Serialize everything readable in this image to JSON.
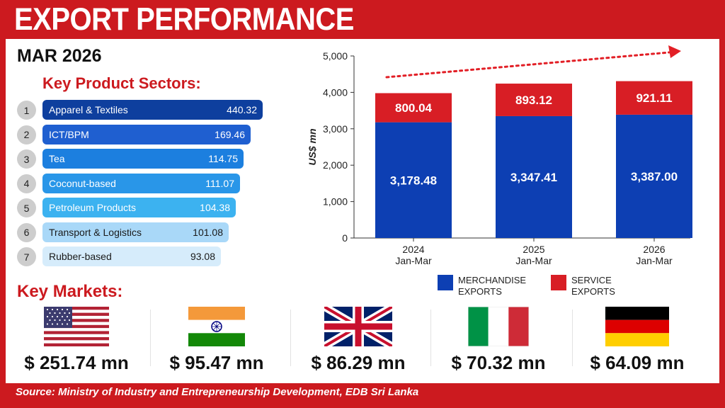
{
  "header": {
    "title": "EXPORT PERFORMANCE",
    "period": "MAR 2026"
  },
  "sectors": {
    "title": "Key Product Sectors:",
    "items": [
      {
        "rank": "1",
        "name": "Apparel & Textiles",
        "value": "440.32",
        "color": "#0e3f9e",
        "text_color": "#ffffff"
      },
      {
        "rank": "2",
        "name": "ICT/BPM",
        "value": "169.46",
        "color": "#1f5fd0",
        "text_color": "#ffffff"
      },
      {
        "rank": "3",
        "name": "Tea",
        "value": "114.75",
        "color": "#1c7fdf",
        "text_color": "#ffffff"
      },
      {
        "rank": "4",
        "name": "Coconut-based",
        "value": "111.07",
        "color": "#2996e8",
        "text_color": "#ffffff"
      },
      {
        "rank": "5",
        "name": "Petroleum Products",
        "value": "104.38",
        "color": "#3cb2f0",
        "text_color": "#ffffff"
      },
      {
        "rank": "6",
        "name": "Transport & Logistics",
        "value": "101.08",
        "color": "#a9d8f8",
        "text_color": "#1a1a1a"
      },
      {
        "rank": "7",
        "name": "Rubber-based",
        "value": "93.08",
        "color": "#d6ecfb",
        "text_color": "#1a1a1a"
      }
    ]
  },
  "markets": {
    "title": "Key Markets:",
    "items": [
      {
        "country": "usa",
        "amount": "$ 251.74 mn"
      },
      {
        "country": "india",
        "amount": "$ 95.47 mn"
      },
      {
        "country": "uk",
        "amount": "$ 86.29 mn"
      },
      {
        "country": "italy",
        "amount": "$ 70.32 mn"
      },
      {
        "country": "germany",
        "amount": "$ 64.09 mn"
      }
    ]
  },
  "chart_data": {
    "type": "bar",
    "stacked": true,
    "categories": [
      [
        "2024",
        "Jan-Mar"
      ],
      [
        "2025",
        "Jan-Mar"
      ],
      [
        "2026",
        "Jan-Mar"
      ]
    ],
    "series": [
      {
        "name": "MERCHANDISE EXPORTS",
        "legend": [
          "MERCHANDISE",
          "EXPORTS"
        ],
        "color": "#0d3fb3",
        "values": [
          3178.48,
          3347.41,
          3387.0
        ],
        "labels": [
          "3,178.48",
          "3,347.41",
          "3,387.00"
        ]
      },
      {
        "name": "SERVICE EXPORTS",
        "legend": [
          "SERVICE",
          "EXPORTS"
        ],
        "color": "#d81e25",
        "values": [
          800.04,
          893.12,
          921.11
        ],
        "labels": [
          "800.04",
          "893.12",
          "921.11"
        ]
      }
    ],
    "ylabel": "US$ mn",
    "ylim": [
      0,
      5000
    ],
    "yticks": [
      0,
      1000,
      2000,
      3000,
      4000,
      5000
    ],
    "ytick_labels": [
      "0",
      "1,000",
      "2,000",
      "3,000",
      "4,000",
      "5,000"
    ],
    "trend_arrow": true
  },
  "footer": {
    "source": "Source: Ministry of Industry and Entrepreneurship Development, EDB Sri Lanka"
  },
  "colors": {
    "brand_red": "#cc1a1f",
    "merch_blue": "#0d3fb3",
    "service_red": "#d81e25"
  }
}
